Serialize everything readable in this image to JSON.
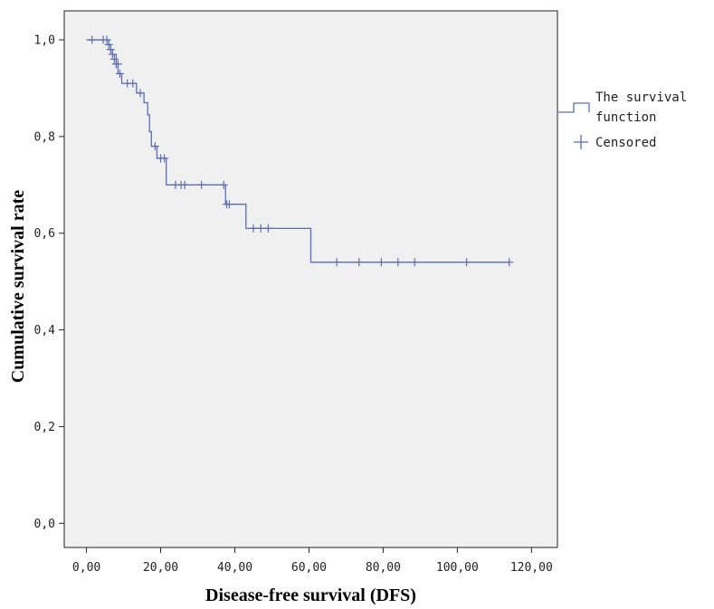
{
  "chart_data": {
    "type": "line",
    "subtype": "kaplan-meier-step",
    "xlabel": "Disease-free survival (DFS)",
    "ylabel": "Cumulative survival rate",
    "xlim": [
      -6,
      127
    ],
    "ylim": [
      -0.05,
      1.06
    ],
    "x_ticks": [
      {
        "value": 0,
        "label": "0,00"
      },
      {
        "value": 20,
        "label": "20,00"
      },
      {
        "value": 40,
        "label": "40,00"
      },
      {
        "value": 60,
        "label": "60,00"
      },
      {
        "value": 80,
        "label": "80,00"
      },
      {
        "value": 100,
        "label": "100,00"
      },
      {
        "value": 120,
        "label": "120,00"
      }
    ],
    "y_ticks": [
      {
        "value": 0.0,
        "label": "0,0"
      },
      {
        "value": 0.2,
        "label": "0,2"
      },
      {
        "value": 0.4,
        "label": "0,4"
      },
      {
        "value": 0.6,
        "label": "0,6"
      },
      {
        "value": 0.8,
        "label": "0,8"
      },
      {
        "value": 1.0,
        "label": "1,0"
      }
    ],
    "grid": false,
    "plot_background": "#f0f0f0",
    "line_color": "#5a6db3",
    "legend": {
      "placement": "right",
      "entries": [
        {
          "name": "The survival function",
          "lines": [
            "The survival",
            "function"
          ],
          "symbol": "step-line"
        },
        {
          "name": "Censored",
          "lines": [
            "Censored"
          ],
          "symbol": "plus"
        }
      ]
    },
    "series": [
      {
        "name": "The survival function",
        "step_points": [
          [
            0,
            1.0
          ],
          [
            6,
            0.99
          ],
          [
            6.5,
            0.98
          ],
          [
            7,
            0.97
          ],
          [
            8,
            0.95
          ],
          [
            8.5,
            0.93
          ],
          [
            9.5,
            0.91
          ],
          [
            13.5,
            0.89
          ],
          [
            15.5,
            0.87
          ],
          [
            16.5,
            0.845
          ],
          [
            17,
            0.81
          ],
          [
            17.5,
            0.78
          ],
          [
            19,
            0.755
          ],
          [
            21.5,
            0.7
          ],
          [
            37.5,
            0.66
          ],
          [
            43,
            0.61
          ],
          [
            60.5,
            0.54
          ],
          [
            114,
            0.54
          ]
        ]
      },
      {
        "name": "Censored",
        "censored_points": [
          [
            1.5,
            1.0
          ],
          [
            4.5,
            1.0
          ],
          [
            5.5,
            1.0
          ],
          [
            6,
            0.99
          ],
          [
            6.5,
            0.98
          ],
          [
            7,
            0.97
          ],
          [
            7.5,
            0.96
          ],
          [
            8,
            0.95
          ],
          [
            8.5,
            0.95
          ],
          [
            9,
            0.93
          ],
          [
            11,
            0.91
          ],
          [
            12.5,
            0.91
          ],
          [
            14.5,
            0.89
          ],
          [
            18.5,
            0.78
          ],
          [
            20,
            0.755
          ],
          [
            21,
            0.755
          ],
          [
            24,
            0.7
          ],
          [
            25.5,
            0.7
          ],
          [
            26.5,
            0.7
          ],
          [
            31,
            0.7
          ],
          [
            37,
            0.7
          ],
          [
            37.8,
            0.66
          ],
          [
            38.5,
            0.66
          ],
          [
            45,
            0.61
          ],
          [
            47,
            0.61
          ],
          [
            49,
            0.61
          ],
          [
            67.5,
            0.54
          ],
          [
            73.5,
            0.54
          ],
          [
            79.5,
            0.54
          ],
          [
            84,
            0.54
          ],
          [
            88.5,
            0.54
          ],
          [
            102.5,
            0.54
          ],
          [
            114,
            0.54
          ]
        ]
      }
    ]
  }
}
